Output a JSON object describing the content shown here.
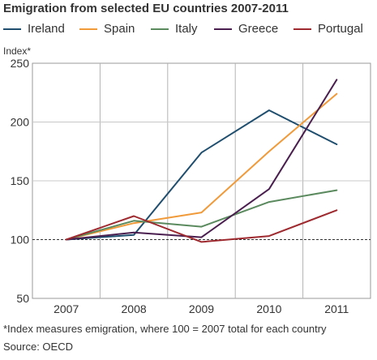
{
  "title": "Emigration from selected EU countries 2007-2011",
  "note": "*Index measures emigration, where 100 = 2007 total for each country",
  "source": "Source: OECD",
  "chart_data": {
    "type": "line",
    "title": "Emigration from selected EU countries 2007-2011",
    "xlabel": "",
    "ylabel": "Index*",
    "x": [
      "2007",
      "2008",
      "2009",
      "2010",
      "2011"
    ],
    "ylim": [
      50,
      250
    ],
    "yticks": [
      50,
      100,
      150,
      200,
      250
    ],
    "grid": true,
    "reference_line": 100,
    "legend_position": "top",
    "series": [
      {
        "name": "Ireland",
        "color": "#1f4e6e",
        "values": [
          100,
          104,
          174,
          210,
          181
        ]
      },
      {
        "name": "Spain",
        "color": "#f09a3a",
        "values": [
          100,
          114,
          123,
          175,
          224
        ]
      },
      {
        "name": "Italy",
        "color": "#5a8a5e",
        "values": [
          100,
          116,
          111,
          132,
          142
        ]
      },
      {
        "name": "Greece",
        "color": "#4a1f4f",
        "values": [
          100,
          106,
          102,
          143,
          236
        ]
      },
      {
        "name": "Portugal",
        "color": "#9e2a2f",
        "values": [
          100,
          120,
          98,
          103,
          125
        ]
      }
    ]
  }
}
